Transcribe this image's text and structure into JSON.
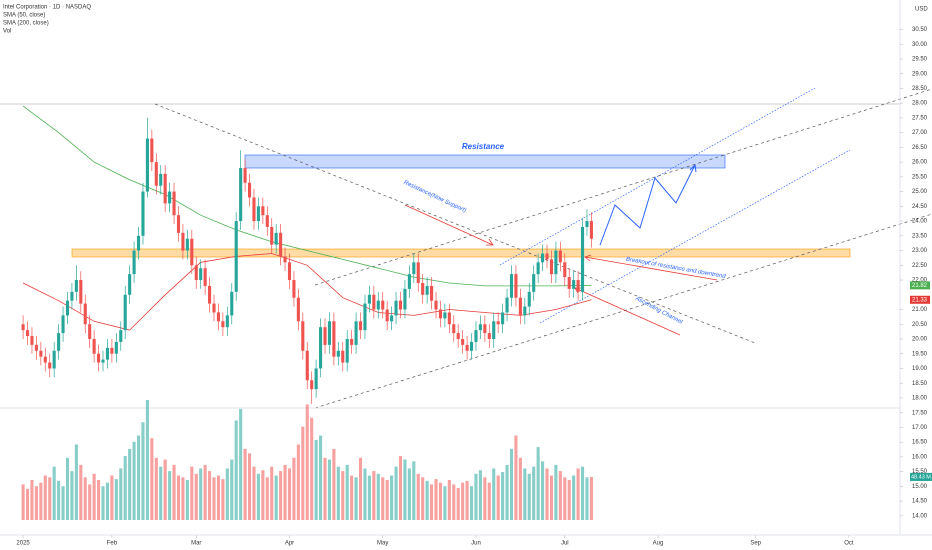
{
  "chart_data": {
    "type": "candlestick",
    "title": "Intel Corporation · 1D · NASDAQ",
    "indicators": [
      "SMA (50, close)",
      "SMA (200, close)",
      "Vol"
    ],
    "currency": "USD",
    "up_color": "#26a69a",
    "down_color": "#ef5350",
    "grid": false,
    "xlim": [
      -5.2,
      197.5
    ],
    "xticks": [
      {
        "value": 0,
        "label": "2025"
      },
      {
        "value": 20,
        "label": "Feb"
      },
      {
        "value": 39,
        "label": "Mar"
      },
      {
        "value": 60,
        "label": "Apr"
      },
      {
        "value": 81,
        "label": "May"
      },
      {
        "value": 102,
        "label": "Jun"
      },
      {
        "value": 122,
        "label": "Jul"
      },
      {
        "value": 143,
        "label": "Aug"
      },
      {
        "value": 165,
        "label": "Sep"
      },
      {
        "value": 186,
        "label": "Oct"
      }
    ],
    "ylim": [
      13.35,
      31.5
    ],
    "yticks": [
      {
        "value": 14,
        "label": "14.00"
      },
      {
        "value": 14.5,
        "label": "14.50"
      },
      {
        "value": 15,
        "label": "15.00"
      },
      {
        "value": 15.5,
        "label": "15.50"
      },
      {
        "value": 16,
        "label": "16.00"
      },
      {
        "value": 16.5,
        "label": "16.50"
      },
      {
        "value": 17,
        "label": "17.00"
      },
      {
        "value": 17.5,
        "label": "17.50"
      },
      {
        "value": 18,
        "label": "18.00"
      },
      {
        "value": 18.5,
        "label": "18.50"
      },
      {
        "value": 19,
        "label": "19.00"
      },
      {
        "value": 19.5,
        "label": "19.50"
      },
      {
        "value": 20,
        "label": "20.00"
      },
      {
        "value": 20.5,
        "label": "20.50"
      },
      {
        "value": 21,
        "label": "21.00"
      },
      {
        "value": 22,
        "label": "22.00"
      },
      {
        "value": 22.5,
        "label": "22.50"
      },
      {
        "value": 23,
        "label": "23.00"
      },
      {
        "value": 23.5,
        "label": "23.50"
      },
      {
        "value": 24,
        "label": "24.00"
      },
      {
        "value": 24.5,
        "label": "24.50"
      },
      {
        "value": 25,
        "label": "25.00"
      },
      {
        "value": 25.5,
        "label": "25.50"
      },
      {
        "value": 26,
        "label": "26.00"
      },
      {
        "value": 26.5,
        "label": "26.50"
      },
      {
        "value": 27,
        "label": "27.00"
      },
      {
        "value": 27.5,
        "label": "27.50"
      },
      {
        "value": 28,
        "label": "28.00"
      },
      {
        "value": 28.5,
        "label": "28.50"
      },
      {
        "value": 29,
        "label": "29.00"
      },
      {
        "value": 29.5,
        "label": "29.50"
      },
      {
        "value": 30,
        "label": "30.00"
      },
      {
        "value": 30.5,
        "label": "30.50"
      }
    ],
    "ohlc": [
      [
        20.5,
        20.8,
        20.0,
        20.3
      ],
      [
        20.3,
        20.6,
        19.8,
        20.1
      ],
      [
        20.1,
        20.4,
        19.5,
        19.8
      ],
      [
        19.8,
        20.1,
        19.3,
        19.6
      ],
      [
        19.6,
        19.9,
        19.1,
        19.4
      ],
      [
        19.4,
        19.7,
        18.9,
        19.2
      ],
      [
        19.2,
        19.5,
        18.7,
        19.0
      ],
      [
        19.0,
        19.9,
        18.7,
        19.6
      ],
      [
        19.6,
        20.5,
        19.3,
        20.2
      ],
      [
        20.2,
        21.1,
        19.9,
        20.8
      ],
      [
        20.8,
        21.6,
        20.5,
        21.3
      ],
      [
        21.3,
        21.9,
        21.0,
        21.6
      ],
      [
        21.6,
        22.5,
        21.3,
        22.0
      ],
      [
        22.0,
        22.3,
        20.9,
        21.2
      ],
      [
        21.2,
        21.5,
        20.2,
        20.5
      ],
      [
        20.5,
        20.8,
        19.7,
        20.0
      ],
      [
        20.0,
        20.3,
        19.2,
        19.5
      ],
      [
        19.5,
        19.8,
        18.9,
        19.2
      ],
      [
        19.2,
        19.6,
        18.9,
        19.3
      ],
      [
        19.3,
        20.0,
        19.0,
        19.7
      ],
      [
        19.7,
        20.0,
        19.2,
        19.5
      ],
      [
        19.5,
        20.2,
        19.2,
        19.9
      ],
      [
        19.9,
        20.6,
        19.6,
        20.3
      ],
      [
        20.3,
        21.8,
        20.0,
        21.5
      ],
      [
        21.5,
        22.5,
        21.2,
        22.2
      ],
      [
        22.2,
        23.3,
        21.9,
        23.0
      ],
      [
        23.0,
        23.8,
        22.7,
        23.5
      ],
      [
        23.5,
        25.3,
        23.2,
        25.0
      ],
      [
        25.0,
        27.5,
        24.8,
        26.8
      ],
      [
        26.8,
        27.1,
        25.7,
        26.0
      ],
      [
        26.0,
        26.3,
        24.9,
        25.2
      ],
      [
        25.2,
        25.9,
        24.9,
        25.6
      ],
      [
        25.6,
        25.9,
        24.3,
        24.6
      ],
      [
        24.6,
        25.3,
        24.3,
        25.0
      ],
      [
        25.0,
        25.3,
        23.9,
        24.2
      ],
      [
        24.2,
        24.5,
        23.3,
        23.6
      ],
      [
        23.6,
        23.9,
        22.7,
        23.0
      ],
      [
        23.0,
        23.7,
        22.7,
        23.4
      ],
      [
        23.4,
        23.7,
        22.2,
        22.5
      ],
      [
        22.5,
        22.8,
        21.7,
        22.0
      ],
      [
        22.0,
        22.7,
        21.7,
        22.4
      ],
      [
        22.4,
        22.7,
        21.5,
        21.8
      ],
      [
        21.8,
        22.1,
        20.9,
        21.2
      ],
      [
        21.2,
        21.5,
        20.6,
        20.9
      ],
      [
        20.9,
        21.2,
        20.3,
        20.6
      ],
      [
        20.6,
        20.9,
        20.1,
        20.4
      ],
      [
        20.4,
        21.1,
        20.1,
        20.8
      ],
      [
        20.8,
        21.9,
        20.5,
        21.6
      ],
      [
        21.6,
        24.3,
        21.3,
        24.0
      ],
      [
        24.0,
        26.4,
        23.7,
        25.8
      ],
      [
        25.8,
        26.1,
        25.0,
        25.3
      ],
      [
        25.3,
        25.6,
        24.5,
        24.8
      ],
      [
        24.8,
        25.1,
        23.7,
        24.0
      ],
      [
        24.0,
        24.8,
        23.7,
        24.5
      ],
      [
        24.5,
        24.8,
        23.9,
        24.2
      ],
      [
        24.2,
        24.5,
        23.5,
        23.8
      ],
      [
        23.8,
        24.1,
        22.9,
        23.2
      ],
      [
        23.2,
        23.9,
        22.9,
        23.6
      ],
      [
        23.6,
        23.9,
        22.5,
        22.8
      ],
      [
        22.8,
        23.1,
        22.3,
        22.6
      ],
      [
        22.6,
        22.9,
        21.7,
        22.0
      ],
      [
        22.0,
        22.3,
        21.1,
        21.4
      ],
      [
        21.4,
        21.7,
        20.3,
        20.6
      ],
      [
        20.6,
        20.9,
        19.3,
        19.6
      ],
      [
        19.6,
        19.9,
        18.3,
        18.6
      ],
      [
        18.6,
        18.9,
        17.8,
        18.3
      ],
      [
        18.3,
        19.3,
        18.0,
        19.0
      ],
      [
        19.0,
        20.7,
        18.7,
        20.4
      ],
      [
        20.4,
        20.7,
        19.5,
        19.8
      ],
      [
        19.8,
        20.9,
        19.5,
        20.6
      ],
      [
        20.6,
        20.9,
        19.1,
        19.4
      ],
      [
        19.4,
        19.9,
        19.1,
        19.6
      ],
      [
        19.6,
        19.9,
        18.9,
        19.2
      ],
      [
        19.2,
        20.3,
        18.9,
        20.0
      ],
      [
        20.0,
        20.3,
        19.5,
        19.8
      ],
      [
        19.8,
        20.9,
        19.5,
        20.6
      ],
      [
        20.6,
        20.9,
        20.0,
        20.3
      ],
      [
        20.3,
        21.5,
        20.0,
        21.2
      ],
      [
        21.2,
        21.8,
        20.9,
        21.5
      ],
      [
        21.5,
        21.8,
        20.7,
        21.0
      ],
      [
        21.0,
        21.6,
        20.7,
        21.3
      ],
      [
        21.3,
        21.6,
        20.7,
        21.0
      ],
      [
        21.0,
        21.3,
        20.3,
        20.6
      ],
      [
        20.6,
        21.1,
        20.3,
        20.8
      ],
      [
        20.8,
        21.6,
        20.5,
        21.3
      ],
      [
        21.3,
        21.6,
        20.7,
        21.0
      ],
      [
        21.0,
        22.0,
        20.7,
        21.7
      ],
      [
        21.7,
        22.5,
        21.4,
        22.2
      ],
      [
        22.2,
        22.9,
        21.9,
        22.6
      ],
      [
        22.6,
        22.9,
        21.6,
        21.9
      ],
      [
        21.9,
        22.2,
        21.2,
        21.5
      ],
      [
        21.5,
        22.1,
        21.2,
        21.8
      ],
      [
        21.8,
        22.1,
        21.0,
        21.3
      ],
      [
        21.3,
        21.6,
        20.7,
        21.0
      ],
      [
        21.0,
        21.3,
        20.4,
        20.7
      ],
      [
        20.7,
        21.2,
        20.4,
        20.9
      ],
      [
        20.9,
        21.2,
        20.2,
        20.5
      ],
      [
        20.5,
        20.8,
        19.9,
        20.2
      ],
      [
        20.2,
        20.5,
        19.7,
        20.0
      ],
      [
        20.0,
        20.3,
        19.5,
        19.8
      ],
      [
        19.8,
        20.1,
        19.3,
        19.6
      ],
      [
        19.6,
        20.2,
        19.3,
        19.9
      ],
      [
        19.9,
        20.6,
        19.6,
        20.3
      ],
      [
        20.3,
        20.8,
        20.0,
        20.5
      ],
      [
        20.5,
        20.8,
        19.9,
        20.2
      ],
      [
        20.2,
        20.5,
        19.7,
        20.0
      ],
      [
        20.0,
        20.9,
        19.7,
        20.6
      ],
      [
        20.6,
        20.9,
        20.2,
        20.5
      ],
      [
        20.5,
        21.2,
        20.2,
        20.9
      ],
      [
        20.9,
        21.7,
        20.6,
        21.4
      ],
      [
        21.4,
        22.5,
        21.1,
        22.2
      ],
      [
        22.2,
        22.5,
        21.1,
        21.4
      ],
      [
        21.4,
        21.7,
        20.5,
        20.8
      ],
      [
        20.8,
        21.4,
        20.5,
        21.1
      ],
      [
        21.1,
        21.9,
        20.8,
        21.6
      ],
      [
        21.6,
        22.5,
        21.3,
        22.2
      ],
      [
        22.2,
        22.9,
        21.9,
        22.6
      ],
      [
        22.6,
        23.2,
        22.3,
        22.9
      ],
      [
        22.9,
        23.2,
        22.4,
        22.7
      ],
      [
        22.7,
        23.0,
        21.9,
        22.2
      ],
      [
        22.2,
        23.3,
        21.9,
        23.0
      ],
      [
        23.0,
        23.3,
        22.3,
        22.6
      ],
      [
        22.6,
        22.9,
        21.8,
        22.1
      ],
      [
        22.1,
        22.4,
        21.4,
        21.7
      ],
      [
        21.7,
        22.3,
        21.4,
        22.0
      ],
      [
        22.0,
        22.3,
        21.3,
        21.6
      ],
      [
        21.6,
        24.1,
        21.3,
        23.8
      ],
      [
        23.8,
        24.4,
        23.5,
        24.0
      ],
      [
        24.0,
        24.3,
        23.1,
        23.4
      ]
    ],
    "volume": {
      "values": [
        40,
        35,
        45,
        38,
        42,
        50,
        48,
        60,
        44,
        38,
        70,
        55,
        85,
        62,
        48,
        40,
        52,
        45,
        38,
        42,
        50,
        46,
        58,
        72,
        80,
        88,
        95,
        110,
        135,
        92,
        70,
        60,
        68,
        55,
        62,
        50,
        48,
        45,
        60,
        52,
        58,
        62,
        55,
        48,
        50,
        46,
        58,
        68,
        112,
        125,
        80,
        75,
        60,
        52,
        56,
        48,
        60,
        50,
        55,
        62,
        58,
        70,
        85,
        105,
        130,
        115,
        90,
        95,
        70,
        68,
        80,
        60,
        55,
        62,
        50,
        48,
        70,
        58,
        50,
        55,
        52,
        48,
        45,
        50,
        60,
        72,
        68,
        58,
        66,
        52,
        48,
        44,
        40,
        46,
        42,
        38,
        45,
        40,
        36,
        42,
        44,
        38,
        52,
        56,
        48,
        42,
        58,
        50,
        54,
        62,
        80,
        95,
        70,
        58,
        52,
        60,
        82,
        66,
        58,
        50,
        62,
        55,
        48,
        45,
        50,
        58,
        60,
        48,
        48.43
      ],
      "last_label": "48.43 M"
    },
    "series": [
      {
        "name": "SMA (200, close)",
        "color": "#4caf50",
        "x": [
          0,
          8,
          16,
          24,
          32,
          40,
          48,
          56,
          64,
          72,
          80,
          88,
          96,
          104,
          112,
          120,
          128
        ],
        "values": [
          27.9,
          27.0,
          26.0,
          25.4,
          24.9,
          24.2,
          23.7,
          23.3,
          23.0,
          22.7,
          22.4,
          22.1,
          21.9,
          21.8,
          21.8,
          21.8,
          21.82
        ]
      },
      {
        "name": "SMA (50, close)",
        "color": "#e53935",
        "x": [
          0,
          8,
          16,
          24,
          32,
          40,
          48,
          56,
          64,
          72,
          80,
          88,
          96,
          104,
          112,
          120,
          128
        ],
        "values": [
          21.9,
          21.3,
          20.6,
          20.3,
          21.5,
          22.6,
          22.8,
          22.9,
          22.5,
          21.4,
          20.9,
          20.8,
          21.0,
          20.9,
          20.8,
          21.0,
          21.33
        ]
      }
    ],
    "annotations": {
      "resistance": "Resistance",
      "now_support": "Resistance(Now Support)",
      "breakout": "Breakout of resistance and downtrend",
      "channel": "Ascending Channel"
    }
  }
}
